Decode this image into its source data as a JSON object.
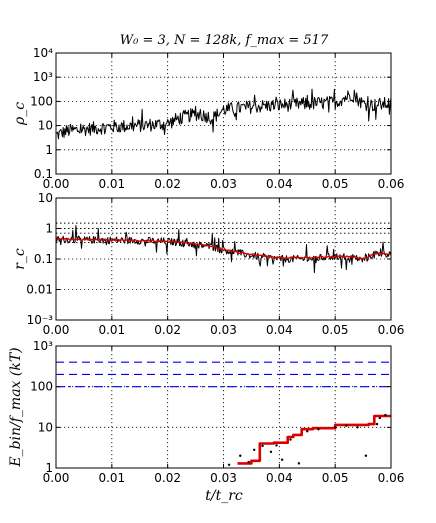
{
  "figure": {
    "title": "W₀ = 3, N = 128k, f_max = 517",
    "xlabel": "t/t_rc"
  },
  "chart_data": [
    {
      "type": "line",
      "id": "rho",
      "ylabel": "ρ_c",
      "yscale": "log",
      "ylim": [
        0.1,
        10000
      ],
      "xlim": [
        0.0,
        0.06
      ],
      "grid": true,
      "x_ticks": [
        "0.00",
        "0.01",
        "0.02",
        "0.03",
        "0.04",
        "0.05",
        "0.06"
      ],
      "y_ticks": [
        "0.1",
        "1",
        "10",
        "100",
        "10³",
        "10⁴"
      ],
      "series": [
        {
          "color": "#000000",
          "style": "noisy",
          "x": [
            0.0,
            0.002,
            0.005,
            0.01,
            0.015,
            0.02,
            0.022,
            0.025,
            0.027,
            0.028,
            0.03,
            0.035,
            0.04,
            0.045,
            0.05,
            0.053,
            0.055,
            0.057,
            0.06
          ],
          "y": [
            4,
            6,
            7,
            9,
            10,
            12,
            20,
            30,
            25,
            20,
            45,
            60,
            70,
            80,
            90,
            200,
            80,
            70,
            85
          ]
        }
      ]
    },
    {
      "type": "line",
      "id": "rc",
      "ylabel": "r_c",
      "yscale": "log",
      "ylim": [
        0.001,
        10
      ],
      "xlim": [
        0.0,
        0.06
      ],
      "grid": true,
      "x_ticks": [
        "0.00",
        "0.01",
        "0.02",
        "0.03",
        "0.04",
        "0.05",
        "0.06"
      ],
      "y_ticks": [
        "10⁻³",
        "0.01",
        "0.1",
        "1",
        "10"
      ],
      "hlines": [
        1.5,
        1.0,
        0.7,
        0.35
      ],
      "series": [
        {
          "color": "#000000",
          "style": "noisy",
          "x": [
            0.0,
            0.005,
            0.01,
            0.015,
            0.02,
            0.025,
            0.028,
            0.03,
            0.035,
            0.04,
            0.045,
            0.05,
            0.053,
            0.055,
            0.057,
            0.06
          ],
          "y": [
            0.45,
            0.42,
            0.42,
            0.4,
            0.38,
            0.3,
            0.25,
            0.2,
            0.13,
            0.1,
            0.1,
            0.12,
            0.12,
            0.09,
            0.15,
            0.15
          ]
        },
        {
          "color": "#dd0000",
          "style": "smooth",
          "x": [
            0.0,
            0.005,
            0.01,
            0.015,
            0.02,
            0.025,
            0.028,
            0.03,
            0.035,
            0.04,
            0.045,
            0.05,
            0.053,
            0.055,
            0.057,
            0.06
          ],
          "y": [
            0.45,
            0.43,
            0.42,
            0.4,
            0.38,
            0.32,
            0.26,
            0.2,
            0.14,
            0.11,
            0.11,
            0.12,
            0.12,
            0.1,
            0.15,
            0.15
          ]
        }
      ]
    },
    {
      "type": "line",
      "id": "ebin",
      "ylabel": "E_bin/f_max (kT)",
      "yscale": "log",
      "ylim": [
        1,
        1000
      ],
      "xlim": [
        0.0,
        0.06
      ],
      "grid": true,
      "x_ticks": [
        "0.00",
        "0.01",
        "0.02",
        "0.03",
        "0.04",
        "0.05",
        "0.06"
      ],
      "y_ticks": [
        "1",
        "10",
        "100",
        "10³"
      ],
      "dashed_hlines": [
        {
          "y": 400,
          "color": "#0000ee",
          "style": "dash"
        },
        {
          "y": 200,
          "color": "#0000ee",
          "style": "dash"
        },
        {
          "y": 100,
          "color": "#0000ee",
          "style": "dashdot"
        }
      ],
      "series": [
        {
          "color": "#dd0000",
          "style": "step",
          "x": [
            0.0325,
            0.035,
            0.036,
            0.0365,
            0.039,
            0.0405,
            0.0415,
            0.0425,
            0.044,
            0.046,
            0.05,
            0.056,
            0.057,
            0.06
          ],
          "y": [
            1.3,
            1.5,
            1.5,
            4,
            4.2,
            4.2,
            5.8,
            6.5,
            9,
            9.5,
            11.5,
            12,
            19,
            20
          ]
        }
      ],
      "scatter": {
        "color": "#000000",
        "x": [
          0.031,
          0.033,
          0.0345,
          0.0355,
          0.037,
          0.0385,
          0.0395,
          0.0405,
          0.042,
          0.0435,
          0.045,
          0.047,
          0.05,
          0.052,
          0.054,
          0.0555,
          0.0575,
          0.058,
          0.059
        ],
        "y": [
          1.2,
          2,
          1.4,
          2.8,
          3.5,
          2.5,
          3.6,
          1.6,
          5,
          1.3,
          8,
          9,
          10,
          11,
          10,
          2,
          12,
          17,
          20
        ]
      }
    }
  ]
}
